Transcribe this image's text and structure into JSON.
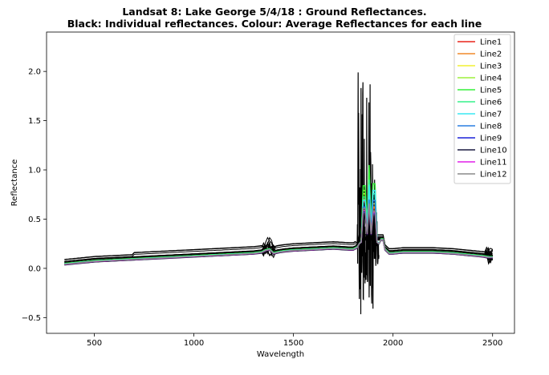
{
  "chart_data": {
    "type": "line",
    "title_line1": "Landsat 8: Lake George 5/4/18 : Ground Reflectances.",
    "title_line2": "Black: Individual reflectances. Colour: Average Reflectances for each line",
    "xlabel": "Wavelength",
    "ylabel": "Reflectance",
    "xlim": [
      260,
      2610
    ],
    "ylim": [
      -0.66,
      2.4
    ],
    "xticks": [
      500,
      1000,
      1500,
      2000,
      2500
    ],
    "yticks": [
      -0.5,
      0.0,
      0.5,
      1.0,
      1.5,
      2.0
    ],
    "ytick_labels": [
      "−0.5",
      "0.0",
      "0.5",
      "1.0",
      "1.5",
      "2.0"
    ],
    "legend_position": "upper right",
    "individual_color": "#000000",
    "base_curve": {
      "x": [
        350,
        400,
        500,
        600,
        700,
        800,
        900,
        1000,
        1100,
        1200,
        1300,
        1340,
        1360,
        1380,
        1400,
        1420,
        1450,
        1500,
        1600,
        1700,
        1780,
        1800,
        1820,
        1830,
        1950,
        1960,
        1980,
        2000,
        2050,
        2100,
        2200,
        2300,
        2400,
        2450,
        2480,
        2500
      ],
      "y": [
        0.05,
        0.06,
        0.08,
        0.09,
        0.1,
        0.11,
        0.12,
        0.13,
        0.14,
        0.15,
        0.16,
        0.17,
        0.19,
        0.2,
        0.16,
        0.17,
        0.18,
        0.19,
        0.2,
        0.21,
        0.2,
        0.2,
        0.22,
        0.3,
        0.3,
        0.2,
        0.16,
        0.16,
        0.17,
        0.17,
        0.17,
        0.16,
        0.14,
        0.13,
        0.12,
        0.12
      ]
    },
    "series": [
      {
        "name": "Line1",
        "color": "#e8231a",
        "offset": 0.0,
        "peaks": [
          0.88,
          0.75,
          0.78
        ]
      },
      {
        "name": "Line2",
        "color": "#f08a2a",
        "offset": 0.005,
        "peaks": [
          0.92,
          0.7,
          0.8
        ]
      },
      {
        "name": "Line3",
        "color": "#f2f032",
        "offset": 0.0,
        "peaks": [
          1.0,
          0.82,
          0.85
        ]
      },
      {
        "name": "Line4",
        "color": "#9ef03c",
        "offset": 0.008,
        "peaks": [
          1.05,
          0.95,
          0.9
        ]
      },
      {
        "name": "Line5",
        "color": "#35f03a",
        "offset": 0.01,
        "peaks": [
          1.12,
          1.05,
          1.15
        ]
      },
      {
        "name": "Line6",
        "color": "#35f08a",
        "offset": 0.006,
        "peaks": [
          0.95,
          0.9,
          1.0
        ]
      },
      {
        "name": "Line7",
        "color": "#38e8f2",
        "offset": 0.004,
        "peaks": [
          0.9,
          0.85,
          1.05
        ]
      },
      {
        "name": "Line8",
        "color": "#2a7ee0",
        "offset": 0.0,
        "peaks": [
          0.8,
          0.7,
          0.9
        ]
      },
      {
        "name": "Line9",
        "color": "#1a20d8",
        "offset": -0.003,
        "peaks": [
          0.72,
          0.62,
          0.7
        ]
      },
      {
        "name": "Line10",
        "color": "#1a1a40",
        "offset": -0.005,
        "peaks": [
          0.7,
          0.6,
          0.68
        ]
      },
      {
        "name": "Line11",
        "color": "#e01ee8",
        "offset": 0.0,
        "peaks": [
          0.75,
          0.65,
          0.72
        ]
      },
      {
        "name": "Line12",
        "color": "#8a8a8a",
        "offset": 0.002,
        "peaks": [
          0.78,
          0.66,
          0.74
        ]
      }
    ]
  }
}
